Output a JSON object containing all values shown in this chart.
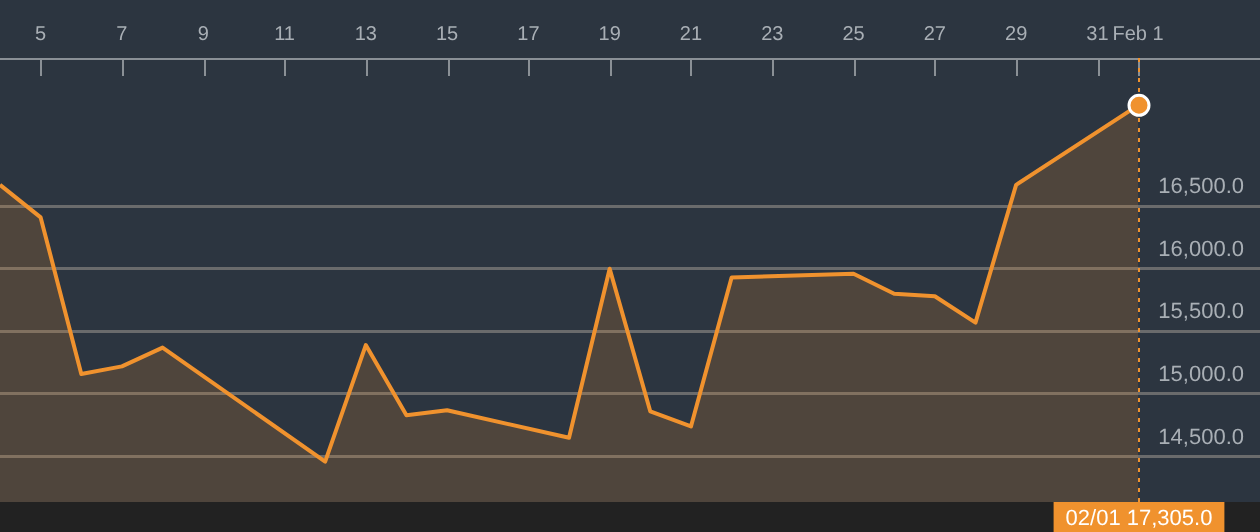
{
  "chart_data": {
    "type": "area",
    "color": "#f0922e",
    "marker": "none",
    "grid": "y",
    "x": [
      "--01-04",
      "--01-05",
      "--01-06",
      "--01-07",
      "--01-08",
      "--01-12",
      "--01-13",
      "--01-14",
      "--01-15",
      "--01-18",
      "--01-19",
      "--01-20",
      "--01-21",
      "--01-22",
      "--01-25",
      "--01-26",
      "--01-27",
      "--01-28",
      "--01-29",
      "--02-01"
    ],
    "values": [
      16670,
      16410,
      15160,
      15220,
      15370,
      14460,
      15390,
      14830,
      14870,
      14650,
      16000,
      14860,
      14740,
      15930,
      15960,
      15800,
      15780,
      15570,
      16670,
      17305
    ],
    "xlim": [
      "--01-04",
      "--02-04"
    ],
    "xticks": [
      {
        "value": "--01-05",
        "label": "5"
      },
      {
        "value": "--01-07",
        "label": "7"
      },
      {
        "value": "--01-09",
        "label": "9"
      },
      {
        "value": "--01-11",
        "label": "11"
      },
      {
        "value": "--01-13",
        "label": "13"
      },
      {
        "value": "--01-15",
        "label": "15"
      },
      {
        "value": "--01-17",
        "label": "17"
      },
      {
        "value": "--01-19",
        "label": "19"
      },
      {
        "value": "--01-21",
        "label": "21"
      },
      {
        "value": "--01-23",
        "label": "23"
      },
      {
        "value": "--01-25",
        "label": "25"
      },
      {
        "value": "--01-27",
        "label": "27"
      },
      {
        "value": "--01-29",
        "label": "29"
      },
      {
        "value": "--01-31",
        "label": "31"
      },
      {
        "value": "--02-01",
        "label": "Feb 1"
      }
    ],
    "ylim": [
      14137,
      17683
    ],
    "yticks": [
      {
        "value": 14500,
        "label": "14,500.0"
      },
      {
        "value": 15000,
        "label": "15,000.0"
      },
      {
        "value": 15500,
        "label": "15,500.0"
      },
      {
        "value": 16000,
        "label": "16,000.0"
      },
      {
        "value": 16500,
        "label": "16,500.0"
      }
    ],
    "ref_lines": [
      {
        "axis": "x",
        "value": "--02-01",
        "label": "02/01 17,305.0",
        "color": "#f0922e",
        "line_style": "dotted"
      }
    ]
  }
}
